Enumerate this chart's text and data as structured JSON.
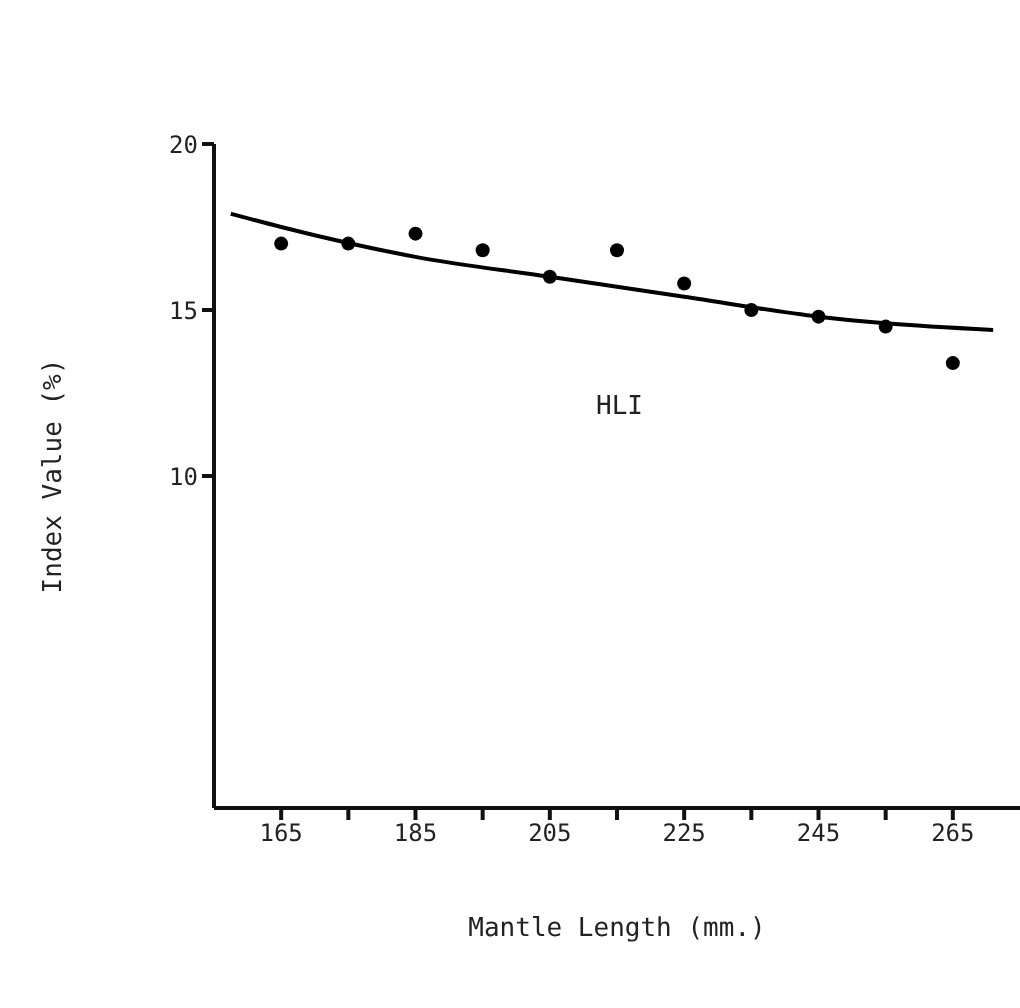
{
  "chart_data": {
    "type": "scatter",
    "xlabel": "Mantle Length (mm.)",
    "ylabel": "Index Value (%)",
    "annotations": [
      "HLI"
    ],
    "xlim": [
      155,
      275
    ],
    "xticks": [
      165,
      {
        "value": 175,
        "label": null
      },
      185,
      {
        "value": 195,
        "label": null
      },
      205,
      {
        "value": 215,
        "label": null
      },
      225,
      {
        "value": 235,
        "label": null
      },
      245,
      {
        "value": 255,
        "label": null
      },
      265
    ],
    "ylim": [
      0,
      20
    ],
    "yticks": [
      10,
      15,
      20
    ],
    "series": [
      {
        "color": "#000000",
        "marker": "circle",
        "x": [
          165,
          175,
          185,
          195,
          205,
          215,
          225,
          235,
          245,
          255,
          265
        ],
        "values": [
          17.0,
          17.0,
          17.3,
          16.8,
          16.0,
          16.8,
          15.8,
          15.0,
          14.8,
          14.5,
          13.4
        ]
      },
      {
        "type": "line",
        "color": "#000000",
        "marker": "none",
        "line_style": "solid",
        "x": [
          157.5,
          165,
          185,
          205,
          225,
          245,
          255,
          271
        ],
        "values": [
          17.9,
          17.5,
          16.6,
          16.0,
          15.4,
          14.8,
          14.6,
          14.4
        ]
      }
    ]
  }
}
